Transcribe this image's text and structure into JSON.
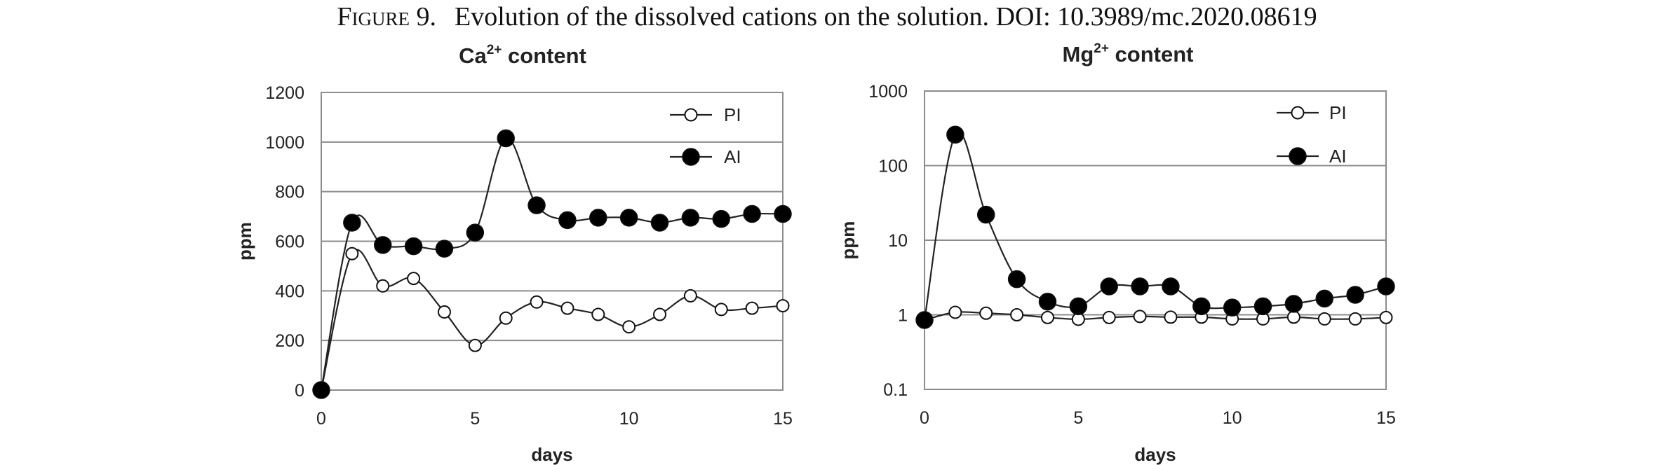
{
  "caption": {
    "label": "Figure 9.",
    "text": "Evolution of the dissolved cations on the solution. DOI: 10.3989/mc.2020.08619"
  },
  "colors": {
    "pi_marker": "#ffffff",
    "ai_marker": "#000000",
    "line": "#222222",
    "grid": "#8c8c8c"
  },
  "chart_data": [
    {
      "type": "line",
      "title": "Ca2+ content",
      "title_base": "Ca",
      "title_sup": "2+",
      "title_rest": " content",
      "xlabel": "days",
      "ylabel": "ppm",
      "xlim": [
        0,
        15
      ],
      "ylim": [
        0,
        1200
      ],
      "xticks": [
        0,
        5,
        10,
        15
      ],
      "yticks": [
        0,
        200,
        400,
        600,
        800,
        1000,
        1200
      ],
      "yscale": "linear",
      "grid": true,
      "legend": "top-right",
      "x": [
        0,
        1,
        2,
        3,
        4,
        5,
        6,
        7,
        8,
        9,
        10,
        11,
        12,
        13,
        14,
        15
      ],
      "series": [
        {
          "name": "PI",
          "marker": "open-circle",
          "values": [
            0,
            550,
            420,
            450,
            315,
            180,
            290,
            355,
            330,
            305,
            255,
            305,
            380,
            325,
            330,
            340
          ]
        },
        {
          "name": "AI",
          "marker": "filled-circle",
          "values": [
            0,
            675,
            585,
            580,
            570,
            635,
            1015,
            745,
            685,
            695,
            695,
            675,
            695,
            690,
            710,
            710
          ]
        }
      ]
    },
    {
      "type": "line",
      "title": "Mg2+ content",
      "title_base": "Mg",
      "title_sup": "2+",
      "title_rest": " content",
      "xlabel": "days",
      "ylabel": "ppm",
      "xlim": [
        0,
        15
      ],
      "ylim": [
        0.1,
        1000
      ],
      "xticks": [
        0,
        5,
        10,
        15
      ],
      "yticks": [
        0.1,
        1,
        10,
        100,
        1000
      ],
      "ytick_labels": [
        "0.1",
        "1",
        "10",
        "100",
        "1000"
      ],
      "yscale": "log",
      "grid": true,
      "legend": "top-right",
      "x": [
        0,
        1,
        2,
        3,
        4,
        5,
        6,
        7,
        8,
        9,
        10,
        11,
        12,
        13,
        14,
        15
      ],
      "series": [
        {
          "name": "PI",
          "marker": "open-circle",
          "values": [
            0.85,
            1.08,
            1.05,
            1.0,
            0.92,
            0.87,
            0.92,
            0.95,
            0.93,
            0.93,
            0.88,
            0.88,
            0.93,
            0.88,
            0.88,
            0.92
          ]
        },
        {
          "name": "AI",
          "marker": "filled-circle",
          "values": [
            0.85,
            260,
            22,
            3.0,
            1.5,
            1.3,
            2.4,
            2.4,
            2.4,
            1.3,
            1.25,
            1.3,
            1.4,
            1.65,
            1.85,
            2.4
          ]
        }
      ]
    }
  ]
}
